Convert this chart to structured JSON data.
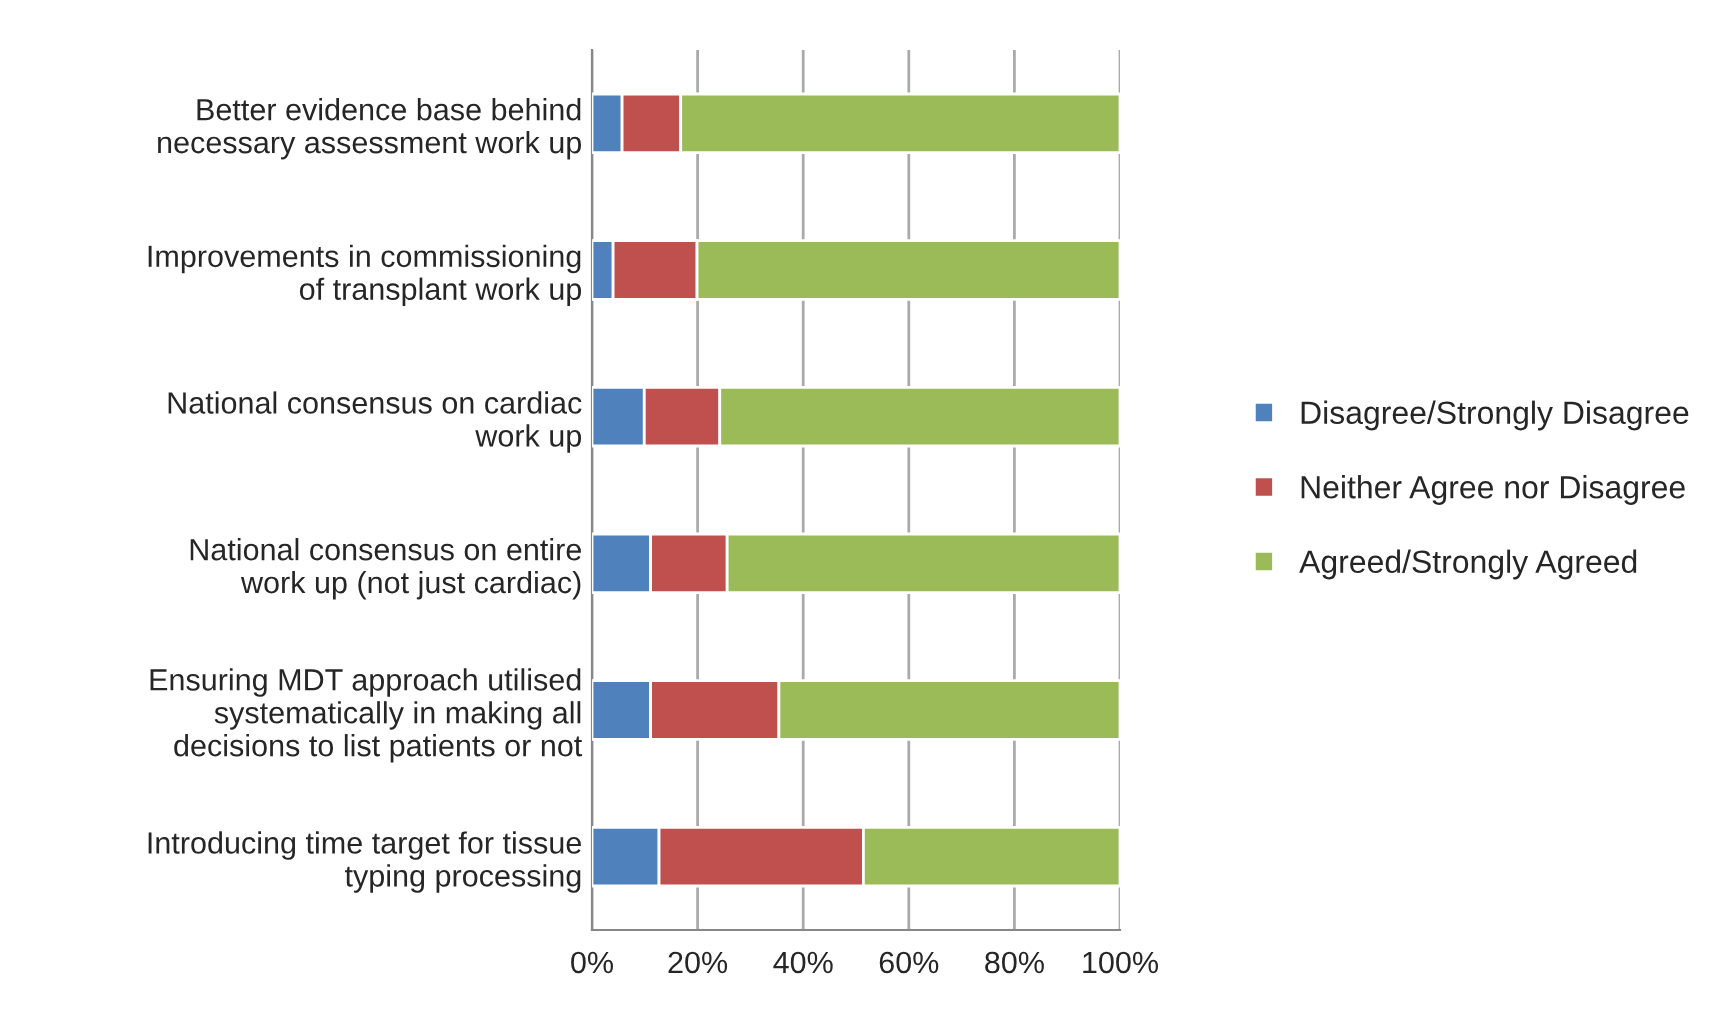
{
  "chart_data": {
    "type": "bar",
    "orientation": "horizontal",
    "stacked": true,
    "categories": [
      "Better evidence base behind\nnecessary assessment work up",
      "Improvements in commissioning\nof transplant work up",
      "National consensus on cardiac\nwork up",
      "National consensus on entire\nwork up (not just cardiac)",
      "Ensuring MDT approach utilised\nsystematically in making all\ndecisions to list patients or not",
      "Introducing time target for tissue\ntyping processing"
    ],
    "series": [
      {
        "name": "Disagree/Strongly Disagree",
        "color": "#4f81bd",
        "values": [
          5.7,
          4.0,
          9.9,
          11.1,
          11.1,
          12.7
        ]
      },
      {
        "name": "Neither Agree nor Disagree",
        "color": "#c0504d",
        "values": [
          11.1,
          15.9,
          14.3,
          14.5,
          24.3,
          38.7
        ]
      },
      {
        "name": "Agreed/Strongly Agreed",
        "color": "#9bbb59",
        "values": [
          83.2,
          80.1,
          75.8,
          74.4,
          64.6,
          48.6
        ]
      }
    ],
    "xlim": [
      0,
      100
    ],
    "xticks": [
      {
        "value": 0,
        "label": "0%"
      },
      {
        "value": 20,
        "label": "20%"
      },
      {
        "value": 40,
        "label": "40%"
      },
      {
        "value": 60,
        "label": "60%"
      },
      {
        "value": 80,
        "label": "80%"
      },
      {
        "value": 100,
        "label": "100%"
      }
    ],
    "grid": "x",
    "legend": "right"
  }
}
